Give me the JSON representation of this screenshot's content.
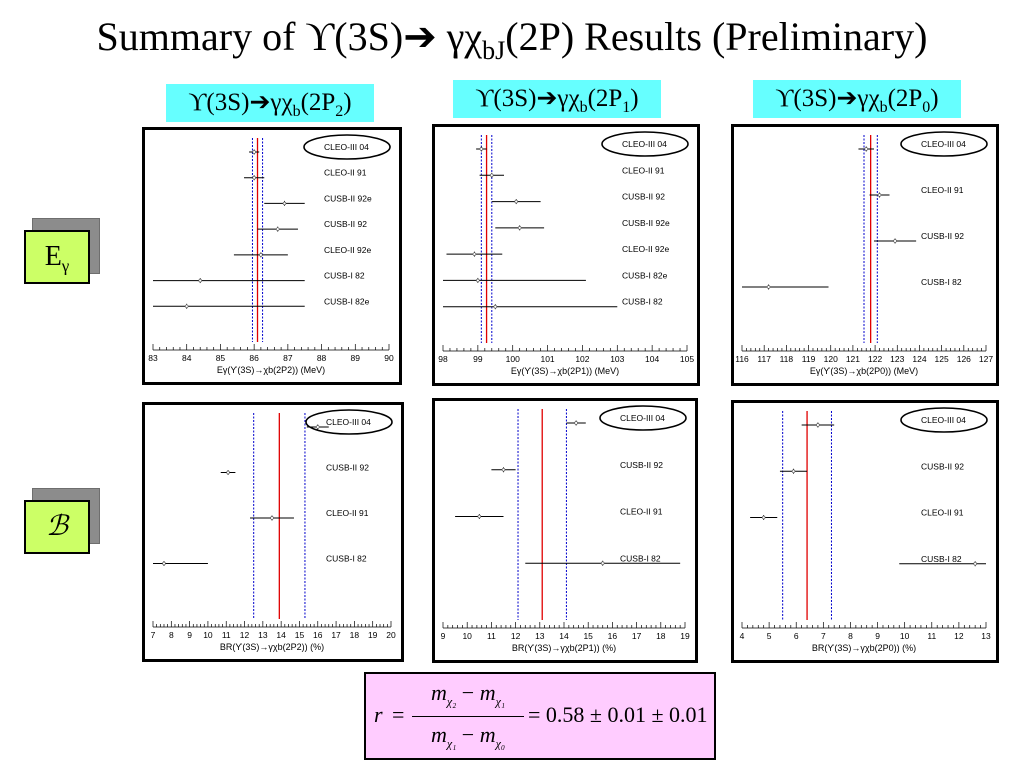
{
  "title": {
    "lead": "Summary of ϒ(3S)",
    "arrow": "➔",
    "mid": " γχ",
    "sub": "bJ",
    "tail": "(2P) Results (Preliminary)"
  },
  "column_labels": [
    {
      "main": "ϒ(3S)➔γχ",
      "sub1": "b",
      "paren_open": "(2P",
      "sub2": "2",
      "paren_close": ")"
    },
    {
      "main": "ϒ(3S)➔γχ",
      "sub1": "b",
      "paren_open": "(2P",
      "sub2": "1",
      "paren_close": ")"
    },
    {
      "main": "ϒ(3S)➔γχ",
      "sub1": "b",
      "paren_open": "(2P",
      "sub2": "0",
      "paren_close": ")"
    }
  ],
  "row_labels": {
    "energy": {
      "main": "E",
      "sub": "γ"
    },
    "branching": {
      "main": "ℬ"
    }
  },
  "ratio": {
    "lhs": "r",
    "eq": "=",
    "num_a": "m",
    "num_a_sub": "χ₂",
    "num_minus": " − ",
    "num_b": "m",
    "num_b_sub": "χ₁",
    "den_a": "m",
    "den_a_sub": "χ₁",
    "den_minus": " − ",
    "den_b": "m",
    "den_b_sub": "χ₀",
    "rhs": "= 0.58 ± 0.01 ± 0.01"
  },
  "colors": {
    "cyan_label": "#66ffff",
    "green_box": "#ccff66",
    "pink_box": "#ffccff",
    "average_line": "#e00000",
    "error_band": "#0000cc"
  },
  "chart_data": [
    {
      "type": "scatter",
      "xlabel": "Eγ(ϒ(3S)→χb(2P2)) (MeV)",
      "xlim": [
        83,
        90
      ],
      "ticks": [
        83,
        84,
        85,
        86,
        87,
        88,
        89,
        90
      ],
      "average": 86.1,
      "band": [
        85.95,
        86.25
      ],
      "points": [
        {
          "label": "CLEO-III 04",
          "x": 86.0,
          "err": 0.15,
          "circled": true
        },
        {
          "label": "CLEO-II 91",
          "x": 86.0,
          "err": 0.3
        },
        {
          "label": "CUSB-II 92e",
          "x": 86.9,
          "err": 0.6
        },
        {
          "label": "CUSB-II 92",
          "x": 86.7,
          "err": 0.6
        },
        {
          "label": "CLEO-II 92e",
          "x": 86.2,
          "err": 0.8
        },
        {
          "label": "CUSB-I 82",
          "x": 84.4,
          "err": 3.1
        },
        {
          "label": "CUSB-I 82e",
          "x": 84.0,
          "err": 3.5
        }
      ]
    },
    {
      "type": "scatter",
      "xlabel": "Eγ(ϒ(3S)→χb(2P1)) (MeV)",
      "xlim": [
        98,
        105
      ],
      "ticks": [
        98,
        99,
        100,
        101,
        102,
        103,
        104,
        105
      ],
      "average": 99.25,
      "band": [
        99.1,
        99.4
      ],
      "points": [
        {
          "label": "CLEO-III 04",
          "x": 99.1,
          "err": 0.15,
          "circled": true
        },
        {
          "label": "CLEO-II 91",
          "x": 99.4,
          "err": 0.35
        },
        {
          "label": "CUSB-II 92",
          "x": 100.1,
          "err": 0.7
        },
        {
          "label": "CUSB-II 92e",
          "x": 100.2,
          "err": 0.7
        },
        {
          "label": "CLEO-II 92e",
          "x": 98.9,
          "err": 0.8
        },
        {
          "label": "CUSB-I 82e",
          "x": 99.0,
          "err": 3.1
        },
        {
          "label": "CUSB-I 82",
          "x": 99.5,
          "err": 3.5
        }
      ]
    },
    {
      "type": "scatter",
      "xlabel": "Eγ(ϒ(3S)→χb(2P0)) (MeV)",
      "xlim": [
        116,
        127
      ],
      "ticks": [
        116,
        117,
        118,
        119,
        120,
        121,
        122,
        123,
        124,
        125,
        126,
        127
      ],
      "average": 121.8,
      "band": [
        121.5,
        122.1
      ],
      "points": [
        {
          "label": "CLEO-III 04",
          "x": 121.6,
          "err": 0.35,
          "circled": true
        },
        {
          "label": "CLEO-II 91",
          "x": 122.2,
          "err": 0.45
        },
        {
          "label": "CUSB-II 92",
          "x": 122.9,
          "err": 0.95
        },
        {
          "label": "CUSB-I 82",
          "x": 117.2,
          "err": 2.7
        }
      ]
    },
    {
      "type": "scatter",
      "xlabel": "BR(ϒ(3S)→γχb(2P2)) (%)",
      "xlim": [
        7,
        20
      ],
      "ticks": [
        7,
        8,
        9,
        10,
        11,
        12,
        13,
        14,
        15,
        16,
        17,
        18,
        19,
        20
      ],
      "average": 13.9,
      "band": [
        12.5,
        15.3
      ],
      "points": [
        {
          "label": "CLEO-III 04",
          "x": 16.0,
          "err": 0.6,
          "circled": true
        },
        {
          "label": "CUSB-II 92",
          "x": 11.1,
          "err": 0.4
        },
        {
          "label": "CLEO-II 91",
          "x": 13.5,
          "err": 1.2
        },
        {
          "label": "CUSB-I 82",
          "x": 7.6,
          "err": 2.4
        }
      ]
    },
    {
      "type": "scatter",
      "xlabel": "BR(ϒ(3S)→γχb(2P1)) (%)",
      "xlim": [
        9,
        19
      ],
      "ticks": [
        9,
        10,
        11,
        12,
        13,
        14,
        15,
        16,
        17,
        18,
        19
      ],
      "average": 13.1,
      "band": [
        12.1,
        14.1
      ],
      "points": [
        {
          "label": "CLEO-III 04",
          "x": 14.5,
          "err": 0.4,
          "circled": true
        },
        {
          "label": "CUSB-II 92",
          "x": 11.5,
          "err": 0.5
        },
        {
          "label": "CLEO-II 91",
          "x": 10.5,
          "err": 1.0
        },
        {
          "label": "CUSB-I 82",
          "x": 15.6,
          "err": 3.2
        }
      ]
    },
    {
      "type": "scatter",
      "xlabel": "BR(ϒ(3S)→γχb(2P0)) (%)",
      "xlim": [
        4,
        13
      ],
      "ticks": [
        4,
        5,
        6,
        7,
        8,
        9,
        10,
        11,
        12,
        13
      ],
      "average": 6.4,
      "band": [
        5.5,
        7.3
      ],
      "points": [
        {
          "label": "CLEO-III 04",
          "x": 6.8,
          "err": 0.6,
          "circled": true
        },
        {
          "label": "CUSB-II 92",
          "x": 5.9,
          "err": 0.5
        },
        {
          "label": "CLEO-II 91",
          "x": 4.8,
          "err": 0.5
        },
        {
          "label": "CUSB-I 82",
          "x": 12.6,
          "err": 2.8
        }
      ]
    }
  ]
}
